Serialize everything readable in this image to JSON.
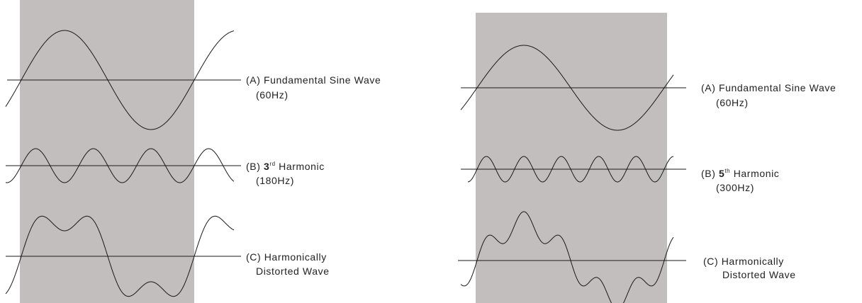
{
  "colors": {
    "panel_fill": "#c1bebd",
    "line": "#1a1a1a",
    "background": "#ffffff"
  },
  "diagrams": [
    {
      "harmonic_order": 3,
      "labels": {
        "fundamental": {
          "line1": "(A) Fundamental  Sine Wave",
          "line2": "(60Hz)"
        },
        "harmonic": {
          "prefix": "(B) ",
          "number": "3",
          "suffix_sup": "rd",
          "rest": " Harmonic",
          "line2": "(180Hz)"
        },
        "distorted": {
          "line1": "(C) Harmonically",
          "line2": "Distorted Wave"
        }
      }
    },
    {
      "harmonic_order": 5,
      "labels": {
        "fundamental": {
          "line1": "(A) Fundamental  Sine Wave",
          "line2": "(60Hz)"
        },
        "harmonic": {
          "prefix": "(B) ",
          "number": "5",
          "suffix_sup": "th",
          "rest": " Harmonic",
          "line2": "(300Hz)"
        },
        "distorted": {
          "line1": "(C) Harmonically",
          "line2": "Distorted Wave"
        }
      }
    }
  ]
}
